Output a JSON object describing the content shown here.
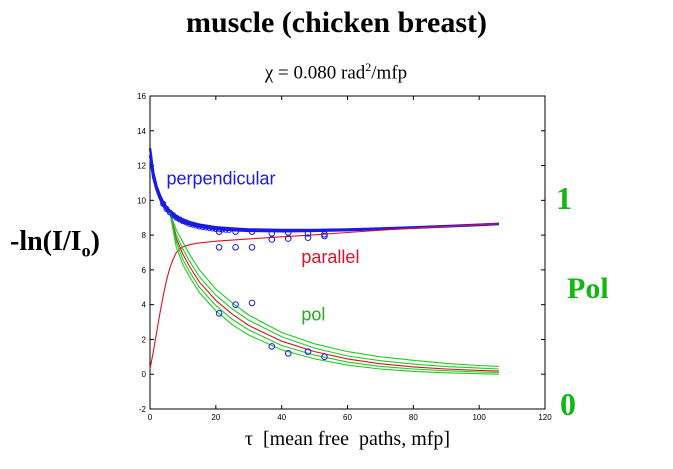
{
  "title": "muscle (chicken breast)",
  "subtitle": {
    "symbol": "χ",
    "text": " = 0.080 rad",
    "sup": "2",
    "tail": "/mfp"
  },
  "ylabel": {
    "main": "-ln(I/I",
    "sub": "o",
    "close": ")"
  },
  "xlabel": {
    "symbol": "τ",
    "text": "  [mean free  paths, mfp]"
  },
  "right_axis": {
    "top": "1",
    "label": "Pol",
    "bottom": "0"
  },
  "colors": {
    "perpendicular": "#1a1ae6",
    "parallel": "#e0102a",
    "pol": "#22cc22",
    "points": "#1a1ae6"
  },
  "chart_data": {
    "type": "line",
    "xlim": [
      0,
      120
    ],
    "ylim": [
      -2,
      16
    ],
    "xticks": [
      0,
      20,
      40,
      60,
      80,
      100,
      120
    ],
    "yticks": [
      -2,
      0,
      2,
      4,
      6,
      8,
      10,
      12,
      14,
      16
    ],
    "annotations": [
      {
        "text": "perpendicular",
        "x": 5,
        "y": 10.9,
        "color": "#1a1ae6"
      },
      {
        "text": "parallel",
        "x": 46,
        "y": 6.4,
        "color": "#e0102a"
      },
      {
        "text": "pol",
        "x": 46,
        "y": 3.1,
        "color": "#22aa22"
      }
    ],
    "series": [
      {
        "name": "perpendicular",
        "color": "#1a1ae6",
        "x": [
          0,
          1,
          2,
          3,
          4,
          5,
          6,
          8,
          10,
          12,
          15,
          20,
          25,
          30,
          40,
          50,
          60,
          70,
          80,
          90,
          100,
          106
        ],
        "y": [
          13.0,
          11.6,
          10.8,
          10.3,
          9.9,
          9.6,
          9.4,
          9.1,
          8.9,
          8.75,
          8.6,
          8.45,
          8.38,
          8.33,
          8.3,
          8.3,
          8.33,
          8.38,
          8.45,
          8.52,
          8.6,
          8.65
        ]
      },
      {
        "name": "perpendicular-2",
        "color": "#1a1ae6",
        "x": [
          0,
          1,
          2,
          3,
          4,
          5,
          6,
          8,
          10,
          12,
          15,
          20,
          25,
          30,
          40,
          50,
          60,
          70,
          80,
          90,
          100,
          106
        ],
        "y": [
          12.6,
          11.3,
          10.6,
          10.1,
          9.7,
          9.45,
          9.25,
          8.95,
          8.75,
          8.62,
          8.48,
          8.35,
          8.28,
          8.24,
          8.22,
          8.24,
          8.28,
          8.34,
          8.42,
          8.5,
          8.58,
          8.64
        ]
      },
      {
        "name": "parallel",
        "color": "#e0102a",
        "x": [
          0,
          1,
          2,
          3,
          4,
          5,
          6,
          7,
          8,
          9,
          10,
          12,
          15,
          20,
          30,
          40,
          50,
          60,
          70,
          80,
          90,
          100,
          106
        ],
        "y": [
          0.3,
          1.3,
          2.4,
          3.5,
          4.5,
          5.4,
          6.1,
          6.6,
          7.0,
          7.2,
          7.32,
          7.45,
          7.55,
          7.65,
          7.78,
          7.9,
          8.02,
          8.15,
          8.28,
          8.4,
          8.5,
          8.6,
          8.65
        ]
      },
      {
        "name": "pol-1",
        "color": "#22cc22",
        "x": [
          6,
          8,
          10,
          12,
          15,
          20,
          25,
          30,
          40,
          50,
          60,
          70,
          80,
          90,
          100,
          106
        ],
        "y": [
          9.3,
          8.3,
          7.6,
          6.9,
          6.0,
          4.9,
          4.1,
          3.4,
          2.4,
          1.75,
          1.3,
          1.0,
          0.8,
          0.62,
          0.5,
          0.45
        ]
      },
      {
        "name": "pol-2",
        "color": "#22cc22",
        "x": [
          6,
          8,
          10,
          12,
          15,
          20,
          25,
          30,
          40,
          50,
          60,
          70,
          80,
          90,
          100,
          106
        ],
        "y": [
          9.3,
          8.0,
          7.2,
          6.5,
          5.6,
          4.55,
          3.75,
          3.1,
          2.15,
          1.5,
          1.05,
          0.78,
          0.58,
          0.44,
          0.35,
          0.3
        ]
      },
      {
        "name": "pol-3",
        "color": "#e0102a",
        "x": [
          6,
          8,
          10,
          12,
          15,
          20,
          25,
          30,
          40,
          50,
          60,
          70,
          80,
          90,
          100,
          106
        ],
        "y": [
          9.3,
          7.8,
          6.9,
          6.2,
          5.3,
          4.25,
          3.45,
          2.8,
          1.9,
          1.3,
          0.88,
          0.6,
          0.42,
          0.3,
          0.22,
          0.18
        ]
      },
      {
        "name": "pol-4",
        "color": "#22cc22",
        "x": [
          6,
          8,
          10,
          12,
          15,
          20,
          25,
          30,
          40,
          50,
          60,
          70,
          80,
          90,
          100,
          106
        ],
        "y": [
          9.3,
          7.6,
          6.6,
          5.9,
          5.0,
          3.95,
          3.15,
          2.55,
          1.65,
          1.1,
          0.7,
          0.45,
          0.3,
          0.2,
          0.13,
          0.1
        ]
      },
      {
        "name": "pol-5",
        "color": "#22cc22",
        "x": [
          6,
          8,
          10,
          12,
          15,
          20,
          25,
          30,
          40,
          50,
          60,
          70,
          80,
          90,
          100,
          106
        ],
        "y": [
          9.3,
          7.3,
          6.3,
          5.6,
          4.7,
          3.65,
          2.85,
          2.25,
          1.4,
          0.88,
          0.52,
          0.3,
          0.16,
          0.08,
          0.03,
          0.0
        ]
      }
    ],
    "points": [
      {
        "group": "perpendicular",
        "x": [
          21,
          26,
          31,
          37,
          42,
          48,
          53
        ],
        "y": [
          8.2,
          8.2,
          8.2,
          8.1,
          8.15,
          8.1,
          8.05
        ]
      },
      {
        "group": "parallel",
        "x": [
          21,
          26,
          31,
          37,
          42,
          48,
          53
        ],
        "y": [
          7.3,
          7.3,
          7.3,
          7.75,
          7.8,
          7.85,
          7.95
        ]
      },
      {
        "group": "pol",
        "x": [
          21,
          26,
          31,
          37,
          42,
          48,
          53
        ],
        "y": [
          3.5,
          4.0,
          4.1,
          1.6,
          1.2,
          1.3,
          1.0
        ]
      }
    ]
  }
}
